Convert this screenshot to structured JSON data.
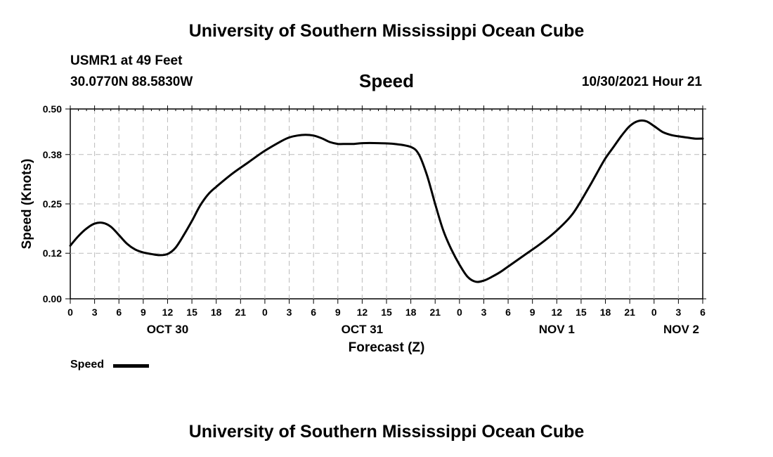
{
  "header": {
    "title": "University of Southern Mississippi Ocean Cube",
    "station": "USMR1 at 49 Feet",
    "coordinates": "30.0770N  88.5830W",
    "parameter": "Speed",
    "datetime": "10/30/2021 Hour 21"
  },
  "footer": {
    "title": "University of Southern Mississippi Ocean Cube"
  },
  "legend": {
    "label": "Speed"
  },
  "colors": {
    "line": "#000000",
    "grid": "#bbbbbb",
    "background": "#ffffff"
  },
  "chart_data": {
    "type": "line",
    "title": "Speed",
    "xlabel": "Forecast (Z)",
    "ylabel": "Speed (Knots)",
    "x_unit": "hours from OCT 30 00Z",
    "xlim": [
      0,
      78
    ],
    "ylim": [
      0.0,
      0.5
    ],
    "y_ticks": [
      0.0,
      0.12,
      0.25,
      0.38,
      0.5
    ],
    "y_tick_labels": [
      "0.00",
      "0.12",
      "0.25",
      "0.38",
      "0.50"
    ],
    "x_ticks": [
      0,
      3,
      6,
      9,
      12,
      15,
      18,
      21,
      24,
      27,
      30,
      33,
      36,
      39,
      42,
      45,
      48,
      51,
      54,
      57,
      60,
      63,
      66,
      69,
      72,
      75,
      78
    ],
    "x_tick_labels": [
      "0",
      "3",
      "6",
      "9",
      "12",
      "15",
      "18",
      "21",
      "0",
      "3",
      "6",
      "9",
      "12",
      "15",
      "18",
      "21",
      "0",
      "3",
      "6",
      "9",
      "12",
      "15",
      "18",
      "21",
      "0",
      "3",
      "6"
    ],
    "date_labels": [
      {
        "x": 12,
        "label": "OCT 30"
      },
      {
        "x": 36,
        "label": "OCT 31"
      },
      {
        "x": 60,
        "label": "NOV 1"
      },
      {
        "x": 78,
        "label": "NOV 2"
      }
    ],
    "series": [
      {
        "name": "Speed",
        "x": [
          0,
          1,
          2,
          3,
          4,
          5,
          6,
          7,
          8,
          9,
          10,
          11,
          12,
          13,
          14,
          15,
          16,
          17,
          18,
          20,
          22,
          24,
          26,
          27,
          28,
          29,
          30,
          31,
          32,
          33,
          34,
          35,
          36,
          38,
          40,
          42,
          43,
          44,
          45,
          46,
          47,
          48,
          49,
          50,
          51,
          52,
          53,
          54,
          56,
          58,
          60,
          62,
          64,
          65,
          66,
          67,
          68,
          69,
          70,
          71,
          72,
          73,
          74,
          75,
          76,
          77,
          78
        ],
        "values": [
          0.14,
          0.165,
          0.185,
          0.198,
          0.2,
          0.19,
          0.168,
          0.145,
          0.13,
          0.122,
          0.118,
          0.115,
          0.118,
          0.135,
          0.168,
          0.205,
          0.245,
          0.275,
          0.295,
          0.33,
          0.36,
          0.39,
          0.415,
          0.425,
          0.43,
          0.432,
          0.43,
          0.423,
          0.413,
          0.408,
          0.408,
          0.408,
          0.41,
          0.41,
          0.408,
          0.4,
          0.38,
          0.325,
          0.25,
          0.18,
          0.13,
          0.09,
          0.058,
          0.045,
          0.048,
          0.058,
          0.07,
          0.085,
          0.115,
          0.145,
          0.18,
          0.225,
          0.295,
          0.333,
          0.37,
          0.4,
          0.43,
          0.455,
          0.468,
          0.468,
          0.455,
          0.44,
          0.432,
          0.428,
          0.425,
          0.422,
          0.422
        ]
      }
    ]
  }
}
